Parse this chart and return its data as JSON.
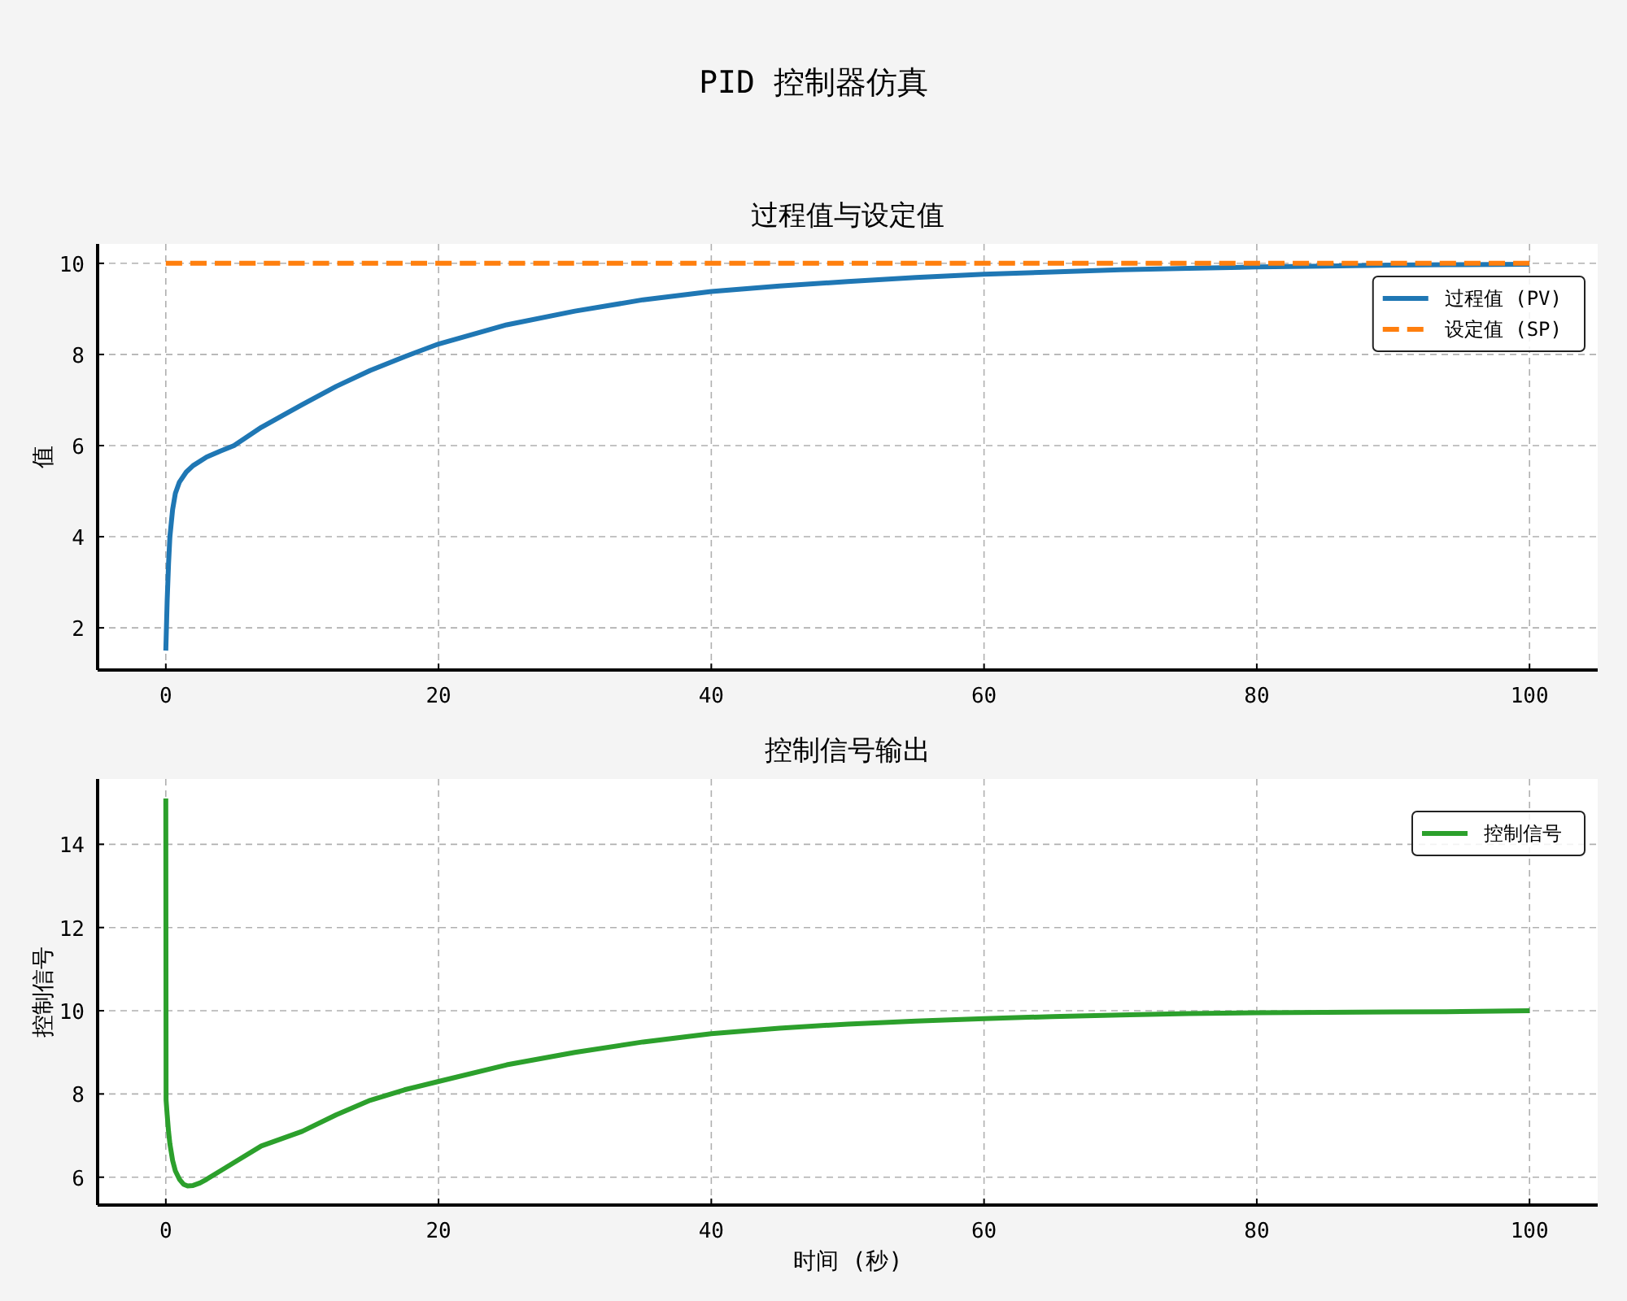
{
  "chart_data": [
    {
      "type": "line",
      "annotations": [
        "PID 控制器仿真"
      ],
      "title": "过程值与设定值",
      "ylabel": "值",
      "xlim": [
        -5,
        105
      ],
      "ylim": [
        1.075,
        10.425
      ],
      "xticks": [
        0,
        20,
        40,
        60,
        80,
        100
      ],
      "yticks": [
        2,
        4,
        6,
        8,
        10
      ],
      "grid": true,
      "legend": "top right",
      "series": [
        {
          "name": "过程值 (PV)",
          "color": "#1f77b4",
          "line_style": "solid",
          "x": [
            0,
            0.1,
            0.2,
            0.3,
            0.5,
            0.7,
            1,
            1.5,
            2,
            3,
            4,
            5,
            7,
            10,
            12.5,
            15,
            17.5,
            20,
            25,
            30,
            35,
            40,
            45,
            50,
            55,
            60,
            65,
            70,
            75,
            80,
            85,
            90,
            95,
            100
          ],
          "values": [
            1.5,
            2.6,
            3.4,
            4.0,
            4.6,
            4.95,
            5.2,
            5.42,
            5.56,
            5.75,
            5.88,
            6.0,
            6.4,
            6.9,
            7.3,
            7.65,
            7.95,
            8.23,
            8.65,
            8.95,
            9.2,
            9.38,
            9.5,
            9.6,
            9.69,
            9.76,
            9.81,
            9.86,
            9.89,
            9.92,
            9.94,
            9.96,
            9.97,
            9.98
          ]
        },
        {
          "name": "设定值 (SP)",
          "color": "#ff7f0e",
          "line_style": "dashed",
          "x": [
            0,
            100
          ],
          "values": [
            10,
            10
          ]
        }
      ]
    },
    {
      "type": "line",
      "title": "控制信号输出",
      "xlabel": "时间 (秒)",
      "ylabel": "控制信号",
      "xlim": [
        -5,
        105
      ],
      "ylim": [
        5.33,
        15.57
      ],
      "xticks": [
        0,
        20,
        40,
        60,
        80,
        100
      ],
      "yticks": [
        6,
        8,
        10,
        12,
        14
      ],
      "grid": true,
      "legend": "top right",
      "series": [
        {
          "name": "控制信号",
          "color": "#2ca02c",
          "line_style": "solid",
          "x": [
            0,
            0.02,
            0.1,
            0.2,
            0.3,
            0.5,
            0.7,
            1,
            1.3,
            1.6,
            2,
            2.5,
            3,
            4,
            5,
            7,
            10,
            12.5,
            15,
            17.5,
            20,
            25,
            30,
            35,
            40,
            45,
            50,
            55,
            60,
            65,
            70,
            75,
            80,
            85,
            90,
            95,
            100
          ],
          "values": [
            15.1,
            7.85,
            7.5,
            7.1,
            6.8,
            6.4,
            6.15,
            5.95,
            5.83,
            5.79,
            5.8,
            5.86,
            5.95,
            6.15,
            6.35,
            6.75,
            7.1,
            7.5,
            7.85,
            8.1,
            8.3,
            8.7,
            9.0,
            9.25,
            9.45,
            9.58,
            9.68,
            9.75,
            9.81,
            9.86,
            9.9,
            9.93,
            9.95,
            9.96,
            9.97,
            9.98,
            10.0
          ]
        }
      ]
    }
  ]
}
